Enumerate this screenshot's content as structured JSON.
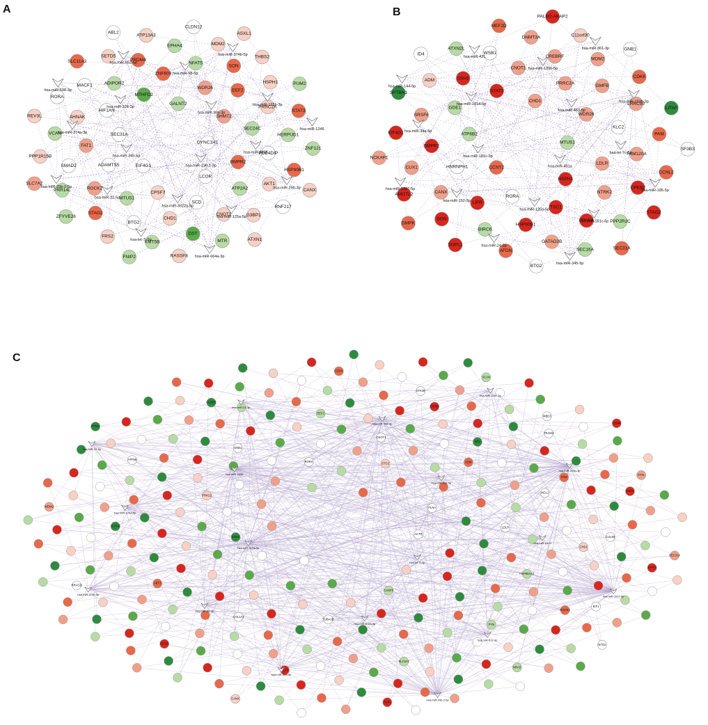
{
  "panels": [
    {
      "label": "A",
      "mirnas": [
        "hsa-miR-136-1-3p",
        "hsa-miR-345-5p",
        "hsa-miR-30b-3p",
        "hsa-miR-3622a-5p",
        "hsa-miR-328-3p",
        "hsa-miR-4455",
        "hsa-miR-22-5p",
        "hsa-miR-98-5p",
        "hsa-miR-125a-5p",
        "hsa-miR-374a-3p",
        "hsa-miR-193b-3p",
        "hsa-let-7i-5p",
        "hsa-miR-652-5p",
        "hsa-miR-29b-3p",
        "hsa-miR-29b-2-5p",
        "hsa-miR-374b-5p",
        "hsa-miR-664a-3p",
        "hsa-miR-598-3p",
        "hsa-miR-1246"
      ],
      "genes": [
        {
          "label": "DYNC1H1",
          "color": "#ffffff"
        },
        {
          "label": "EIF4G1",
          "color": "#ffffff"
        },
        {
          "label": "GALNT2",
          "color": "#b7dba4"
        },
        {
          "label": "LCOR",
          "color": "#ffffff"
        },
        {
          "label": "SEC31A",
          "color": "#ffffff"
        },
        {
          "label": "SHMT2",
          "color": "#f0a08a"
        },
        {
          "label": "CPSF7",
          "color": "#f8d0c4"
        },
        {
          "label": "MTHFD2",
          "color": "#5aaa4a"
        },
        {
          "label": "BMPR2",
          "color": "#e8684a"
        },
        {
          "label": "ADAMTS5",
          "color": "#ffffff"
        },
        {
          "label": "WDR26",
          "color": "#f0a08a"
        },
        {
          "label": "SCD",
          "color": "#ffffff"
        },
        {
          "label": "HIF1AN",
          "color": "#ffffff"
        },
        {
          "label": "SEC24C",
          "color": "#b7dba4"
        },
        {
          "label": "MTUS1",
          "color": "#b7dba4"
        },
        {
          "label": "ZNF609",
          "color": "#e8684a"
        },
        {
          "label": "ATP2A2",
          "color": "#b7dba4"
        },
        {
          "label": "FAT1",
          "color": "#f0a08a"
        },
        {
          "label": "EEF2",
          "color": "#e8684a"
        },
        {
          "label": "CHD1",
          "color": "#f8d0c4"
        },
        {
          "label": "ADIPOR2",
          "color": "#b7dba4"
        },
        {
          "label": "PDE4DIP",
          "color": "#ffffff"
        },
        {
          "label": "ROCK2",
          "color": "#f0a08a"
        },
        {
          "label": "NFAT5",
          "color": "#b7dba4"
        },
        {
          "label": "CNOT1",
          "color": "#f8d0c4"
        },
        {
          "label": "AHNAK",
          "color": "#f8d0c4"
        },
        {
          "label": "PRRC2A",
          "color": "#f8d0c4"
        },
        {
          "label": "BTG2",
          "color": "#ffffff"
        },
        {
          "label": "PRDM4",
          "color": "#e8684a"
        },
        {
          "label": "AKT1",
          "color": "#f8d0c4"
        },
        {
          "label": "SMAD2",
          "color": "#ffffff"
        },
        {
          "label": "SON",
          "color": "#e8684a"
        },
        {
          "label": "DST",
          "color": "#5aaa4a"
        },
        {
          "label": "MACF1",
          "color": "#ffffff"
        },
        {
          "label": "HERPUD1",
          "color": "#b7dba4"
        },
        {
          "label": "STAG2",
          "color": "#e8684a"
        },
        {
          "label": "EPHA4",
          "color": "#b7dba4"
        },
        {
          "label": "G3BP1",
          "color": "#f8d0c4"
        },
        {
          "label": "VCAN",
          "color": "#b7dba4"
        },
        {
          "label": "HSPH1",
          "color": "#f8d0c4"
        },
        {
          "label": "KMT5B",
          "color": "#b7dba4"
        },
        {
          "label": "SETD5",
          "color": "#f8d0c4"
        },
        {
          "label": "HSP90B1",
          "color": "#e8684a"
        },
        {
          "label": "PRR14L",
          "color": "#b7dba4"
        },
        {
          "label": "MDM2",
          "color": "#f8d0c4"
        },
        {
          "label": "MTR",
          "color": "#b7dba4"
        },
        {
          "label": "RORA",
          "color": "#ffffff"
        },
        {
          "label": "STAT3",
          "color": "#e8684a"
        },
        {
          "label": "FRS2",
          "color": "#f8d0c4"
        },
        {
          "label": "ATP13A3",
          "color": "#f8d0c4"
        },
        {
          "label": "RNF217",
          "color": "#ffffff"
        },
        {
          "label": "PPP1R15B",
          "color": "#f8d0c4"
        },
        {
          "label": "THBS2",
          "color": "#f8d0c4"
        },
        {
          "label": "RASSF8",
          "color": "#f8d0c4"
        },
        {
          "label": "SLC11A2",
          "color": "#e8684a"
        },
        {
          "label": "ZNF121",
          "color": "#b7dba4"
        },
        {
          "label": "ZFYVE26",
          "color": "#b7dba4"
        },
        {
          "label": "CLDN12",
          "color": "#ffffff"
        },
        {
          "label": "ATXN1",
          "color": "#f8d0c4"
        },
        {
          "label": "REV3L",
          "color": "#f8d0c4"
        },
        {
          "label": "PUM2",
          "color": "#b7dba4"
        },
        {
          "label": "FNIP2",
          "color": "#b7dba4"
        },
        {
          "label": "ABL2",
          "color": "#ffffff"
        },
        {
          "label": "CANX",
          "color": "#f8d0c4"
        },
        {
          "label": "SLC7A2",
          "color": "#f0a08a"
        },
        {
          "label": "ASXL1",
          "color": "#f8d0c4"
        }
      ]
    },
    {
      "label": "B",
      "mirnas": [
        "hsa-miR-451a",
        "hsa-miR-181c-3p",
        "hsa-miR-483-5p",
        "hsa-miR-125a-5p",
        "hsa-miR-181d-5p",
        "hsa-let-7c-5p",
        "hsa-miR-152-3p",
        "hsa-miR-1296-5p",
        "hsa-miR-181c-5p",
        "hsa-miR-34a-5p",
        "hsa-miR-193b-3p",
        "hsa-miR-24-3p",
        "hsa-miR-421",
        "hsa-miR-185-5p",
        "hsa-miR-1287-5p",
        "hsa-miR-361-3p",
        "hsa-miR-345-5p",
        "hsa-miR-144-5p"
      ],
      "genes": [
        {
          "label": "MTUS1",
          "color": "#b7dba4"
        },
        {
          "label": "CCNT2",
          "color": "#e8684a"
        },
        {
          "label": "CHD1",
          "color": "#f0a08a"
        },
        {
          "label": "HSPH1",
          "color": "#d7261e"
        },
        {
          "label": "ATP6B2",
          "color": "#b7dba4"
        },
        {
          "label": "WDR26",
          "color": "#f0a08a"
        },
        {
          "label": "RORA",
          "color": "#ffffff"
        },
        {
          "label": "STAT3",
          "color": "#d7261e"
        },
        {
          "label": "LDLR",
          "color": "#f0a08a"
        },
        {
          "label": "HNRNPH1",
          "color": "#ffffff"
        },
        {
          "label": "PRRC2A",
          "color": "#f0a08a"
        },
        {
          "label": "TSC1",
          "color": "#d7261e"
        },
        {
          "label": "GDE1",
          "color": "#b7dba4"
        },
        {
          "label": "KLC2",
          "color": "#ffffff"
        },
        {
          "label": "LIFR",
          "color": "#d7261e"
        },
        {
          "label": "CNOT1",
          "color": "#f0a08a"
        },
        {
          "label": "NTRK2",
          "color": "#f0a08a"
        },
        {
          "label": "BMPR2",
          "color": "#d7261e"
        },
        {
          "label": "GMFB",
          "color": "#f0a08a"
        },
        {
          "label": "HSP90B1",
          "color": "#d7261e"
        },
        {
          "label": "SSH2",
          "color": "#d7261e"
        },
        {
          "label": "FAM120A",
          "color": "#f0a08a"
        },
        {
          "label": "CANX",
          "color": "#f0a08a"
        },
        {
          "label": "CREBRF",
          "color": "#f0a08a"
        },
        {
          "label": "PPARA",
          "color": "#d7261e"
        },
        {
          "label": "SRSF6",
          "color": "#f0a08a"
        },
        {
          "label": "LRRC59",
          "color": "#f0a08a"
        },
        {
          "label": "BIRC6",
          "color": "#b7dba4"
        },
        {
          "label": "WSB1",
          "color": "#ffffff"
        },
        {
          "label": "CPEB2",
          "color": "#d7261e"
        },
        {
          "label": "CUX1",
          "color": "#f0a08a"
        },
        {
          "label": "MDM2",
          "color": "#f0a08a"
        },
        {
          "label": "GATAD2B",
          "color": "#f0a08a"
        },
        {
          "label": "ADM",
          "color": "#f8d0c4"
        },
        {
          "label": "PAM",
          "color": "#e8684a"
        },
        {
          "label": "SON",
          "color": "#d7261e"
        },
        {
          "label": "DNMT3A",
          "color": "#f0a08a"
        },
        {
          "label": "PPP2R2C",
          "color": "#b7dba4"
        },
        {
          "label": "EIF4G1",
          "color": "#d7261e"
        },
        {
          "label": "CDK6",
          "color": "#e8684a"
        },
        {
          "label": "AFDN",
          "color": "#e8684a"
        },
        {
          "label": "ATXN2L",
          "color": "#b7dba4"
        },
        {
          "label": "CCNL2",
          "color": "#e8684a"
        },
        {
          "label": "AMOTL2",
          "color": "#d7261e"
        },
        {
          "label": "C11orf30",
          "color": "#f8d0c4"
        },
        {
          "label": "SEC16A",
          "color": "#b7dba4"
        },
        {
          "label": "SPTBN1",
          "color": "#2e8b3e"
        },
        {
          "label": "LITAF",
          "color": "#2e8b3e"
        },
        {
          "label": "SGPL1",
          "color": "#d7261e"
        },
        {
          "label": "MEF2D",
          "color": "#e8684a"
        },
        {
          "label": "STAG2",
          "color": "#d7261e"
        },
        {
          "label": "NCKAP1",
          "color": "#f0a08a"
        },
        {
          "label": "GNB1",
          "color": "#ffffff"
        },
        {
          "label": "BTG2",
          "color": "#ffffff"
        },
        {
          "label": "ID4",
          "color": "#ffffff"
        },
        {
          "label": "SF3B3",
          "color": "#ffffff"
        },
        {
          "label": "DMPK",
          "color": "#e8684a"
        },
        {
          "label": "PALM2-AKAP2",
          "color": "#d7261e"
        },
        {
          "label": "SEC31A",
          "color": "#e8684a"
        }
      ]
    },
    {
      "label": "C",
      "mirnas": [
        "hsa-let-7f-3p",
        "hsa-miR-517a-3p",
        "hsa-miR-615-5p",
        "hsa-miR-516a-5p",
        "hsa-miR-4455",
        "hsa-miR-1323",
        "hsa-miR-98-3p",
        "hsa-miR-498-3p",
        "hsa-miR-512-3p",
        "hsa-miR-125a-5p",
        "hsa-miR-193b-3p",
        "hsa-miR-34a-5p",
        "hsa-miR-24-3p",
        "hsa-miR-181c-5p",
        "hsa-miR-374b-5p",
        "hsa-miR-1287-5p",
        "hsa-miR-29b-2-5p",
        "hsa-miR-22-5p"
      ],
      "genes": [
        {
          "label": "ACTB",
          "color": "#ffffff"
        },
        {
          "label": "FLNA",
          "color": "#ffffff"
        },
        {
          "label": "CASP3",
          "color": "#b7dba4"
        },
        {
          "label": "SOD2",
          "color": "#2e8b3e"
        },
        {
          "label": "STC2",
          "color": "#f8d0c4"
        },
        {
          "label": "RORA",
          "color": "#ffffff"
        },
        {
          "label": "LDLR",
          "color": "#ffffff"
        },
        {
          "label": "TUBA1B",
          "color": "#ffffff"
        },
        {
          "label": "PRKG2",
          "color": "#f8d0c4"
        },
        {
          "label": "ADM",
          "color": "#e8684a"
        },
        {
          "label": "CNOT1",
          "color": "#ffffff"
        },
        {
          "label": "HSP90AA1",
          "color": "#b7dba4"
        },
        {
          "label": "COL1A1",
          "color": "#ffffff"
        },
        {
          "label": "GNB1",
          "color": "#ffffff"
        },
        {
          "label": "MCL1",
          "color": "#ffffff"
        },
        {
          "label": "NCL",
          "color": "#2e8b3e"
        },
        {
          "label": "FYN",
          "color": "#b7dba4"
        },
        {
          "label": "AKT1",
          "color": "#e8684a"
        },
        {
          "label": "EEF2",
          "color": "#b7dba4"
        },
        {
          "label": "CHD1",
          "color": "#f8d0c4"
        },
        {
          "label": "PAM",
          "color": "#e8684a"
        },
        {
          "label": "SLC2A1",
          "color": "#b7dba4"
        },
        {
          "label": "GATA6",
          "color": "#2e8b3e"
        },
        {
          "label": "EP300",
          "color": "#d7261e"
        },
        {
          "label": "ROCK2",
          "color": "#e8684a"
        },
        {
          "label": "CUL4B",
          "color": "#ffffff"
        },
        {
          "label": "KLF6",
          "color": "#d7261e"
        },
        {
          "label": "ATP5B",
          "color": "#ffffff"
        },
        {
          "label": "TRAM2",
          "color": "#ffffff"
        },
        {
          "label": "STK38",
          "color": "#ffffff"
        },
        {
          "label": "EIF1",
          "color": "#ffffff"
        },
        {
          "label": "IGF1R",
          "color": "#d7261e"
        },
        {
          "label": "CCND1",
          "color": "#2e8b3e"
        },
        {
          "label": "ESR1",
          "color": "#d7261e"
        },
        {
          "label": "MBD3",
          "color": "#ffffff"
        },
        {
          "label": "NRAS",
          "color": "#b7dba4"
        },
        {
          "label": "RRAGD",
          "color": "#ffffff"
        },
        {
          "label": "CDK6",
          "color": "#e8684a"
        },
        {
          "label": "STAT3",
          "color": "#d7261e"
        },
        {
          "label": "FAT1",
          "color": "#f0a08a"
        },
        {
          "label": "SON",
          "color": "#d7261e"
        },
        {
          "label": "MDM2",
          "color": "#f0a08a"
        },
        {
          "label": "VCAN",
          "color": "#b7dba4"
        },
        {
          "label": "BTG2",
          "color": "#ffffff"
        },
        {
          "label": "SEC31A",
          "color": "#f0a08a"
        },
        {
          "label": "CANX",
          "color": "#f8d0c4"
        },
        {
          "label": "PTEN",
          "color": "#2e8b3e"
        },
        {
          "label": "CD44",
          "color": "#d7261e"
        }
      ]
    }
  ]
}
